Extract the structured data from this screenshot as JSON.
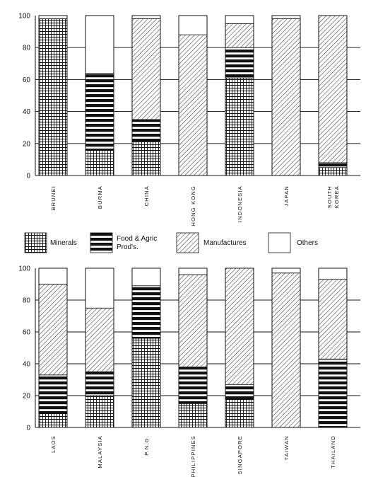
{
  "chart_data": [
    {
      "type": "bar",
      "stacked": true,
      "ylim": [
        0,
        100
      ],
      "yticks": [
        0,
        20,
        40,
        60,
        80,
        100
      ],
      "grid": true,
      "categories": [
        [
          "BRUNEI"
        ],
        [
          "BURMA"
        ],
        [
          "CHINA"
        ],
        [
          "HONG KONG"
        ],
        [
          "INDONESIA"
        ],
        [
          "JAPAN"
        ],
        [
          "SOUTH",
          "KOREA"
        ]
      ],
      "series": [
        {
          "name": "Minerals",
          "values": [
            98,
            16,
            21,
            0,
            61,
            0,
            5
          ]
        },
        {
          "name": "Food & Agric Prod's.",
          "values": [
            0,
            48,
            14,
            0,
            19,
            0,
            3
          ]
        },
        {
          "name": "Manufactures",
          "values": [
            0,
            0,
            63,
            88,
            15,
            98,
            92
          ]
        },
        {
          "name": "Others",
          "values": [
            2,
            36,
            2,
            12,
            5,
            2,
            0
          ]
        }
      ]
    },
    {
      "type": "bar",
      "stacked": true,
      "ylim": [
        0,
        100
      ],
      "yticks": [
        0,
        20,
        40,
        60,
        80,
        100
      ],
      "grid": true,
      "categories": [
        [
          "LAOS"
        ],
        [
          "MALAYSIA"
        ],
        [
          "P.N.G."
        ],
        [
          "PHILIPPINES"
        ],
        [
          "SINGAPORE"
        ],
        [
          "TAIWAN"
        ],
        [
          "THAILAND"
        ]
      ],
      "series": [
        {
          "name": "Minerals",
          "values": [
            9,
            20,
            56,
            15,
            18,
            0,
            0
          ]
        },
        {
          "name": "Food & Agric Prod's.",
          "values": [
            24,
            15,
            33,
            23,
            9,
            0,
            43
          ]
        },
        {
          "name": "Manufactures",
          "values": [
            57,
            40,
            0,
            58,
            73,
            97,
            50
          ]
        },
        {
          "name": "Others",
          "values": [
            10,
            25,
            11,
            4,
            0,
            3,
            7
          ]
        }
      ]
    }
  ],
  "legend": {
    "items": [
      {
        "key": "minerals",
        "lines": [
          "Minerals"
        ]
      },
      {
        "key": "food",
        "lines": [
          "Food & Agric",
          "Prod's."
        ]
      },
      {
        "key": "manufactures",
        "lines": [
          "Manufactures"
        ]
      },
      {
        "key": "others",
        "lines": [
          "Others"
        ]
      }
    ]
  },
  "pattern_keys": [
    "minerals",
    "food",
    "manufactures",
    "others"
  ]
}
